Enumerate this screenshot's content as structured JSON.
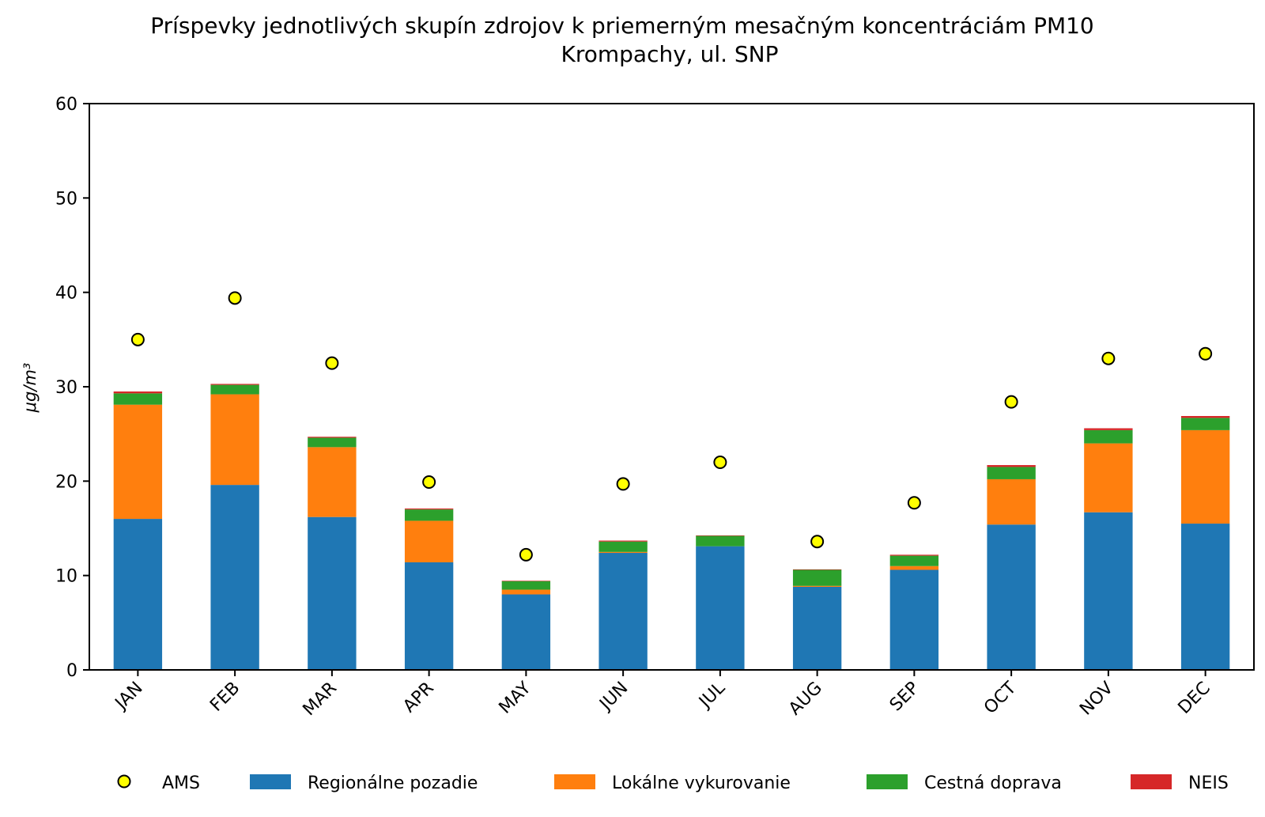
{
  "chart_data": {
    "type": "bar",
    "stacked": true,
    "title": "Príspevky jednotlivých skupín zdrojov k priemerným mesačným koncentráciám PM10",
    "subtitle": "Krompachy, ul. SNP",
    "xlabel": "",
    "ylabel": "μg/m³",
    "ylim": [
      0,
      60
    ],
    "yticks": [
      0,
      10,
      20,
      30,
      40,
      50,
      60
    ],
    "categories": [
      "JAN",
      "FEB",
      "MAR",
      "APR",
      "MAY",
      "JUN",
      "JUL",
      "AUG",
      "SEP",
      "OCT",
      "NOV",
      "DEC"
    ],
    "series": [
      {
        "name": "Regionálne pozadie",
        "color": "#1f77b4",
        "values": [
          16.0,
          19.6,
          16.2,
          11.4,
          8.0,
          12.4,
          13.1,
          8.8,
          10.6,
          15.4,
          16.7,
          15.5
        ]
      },
      {
        "name": "Lokálne vykurovanie",
        "color": "#ff7f0e",
        "values": [
          12.1,
          9.6,
          7.4,
          4.4,
          0.5,
          0.1,
          0.0,
          0.1,
          0.4,
          4.8,
          7.3,
          9.9
        ]
      },
      {
        "name": "Cestná doprava",
        "color": "#2ca02c",
        "values": [
          1.2,
          1.0,
          1.0,
          1.2,
          0.9,
          1.1,
          1.1,
          1.7,
          1.1,
          1.3,
          1.4,
          1.3
        ]
      },
      {
        "name": "NEIS",
        "color": "#d62728",
        "values": [
          0.2,
          0.1,
          0.1,
          0.1,
          0.05,
          0.1,
          0.05,
          0.05,
          0.1,
          0.2,
          0.2,
          0.2
        ]
      }
    ],
    "markers": {
      "name": "AMS",
      "color": "#ffff00",
      "edgecolor": "#000000",
      "values": [
        35.0,
        39.4,
        32.5,
        19.9,
        12.2,
        19.7,
        22.0,
        13.6,
        17.7,
        28.4,
        33.0,
        33.5
      ]
    },
    "legend": {
      "position": "bottom",
      "order": [
        "AMS",
        "Regionálne pozadie",
        "Lokálne vykurovanie",
        "Cestná doprava",
        "NEIS"
      ]
    }
  }
}
